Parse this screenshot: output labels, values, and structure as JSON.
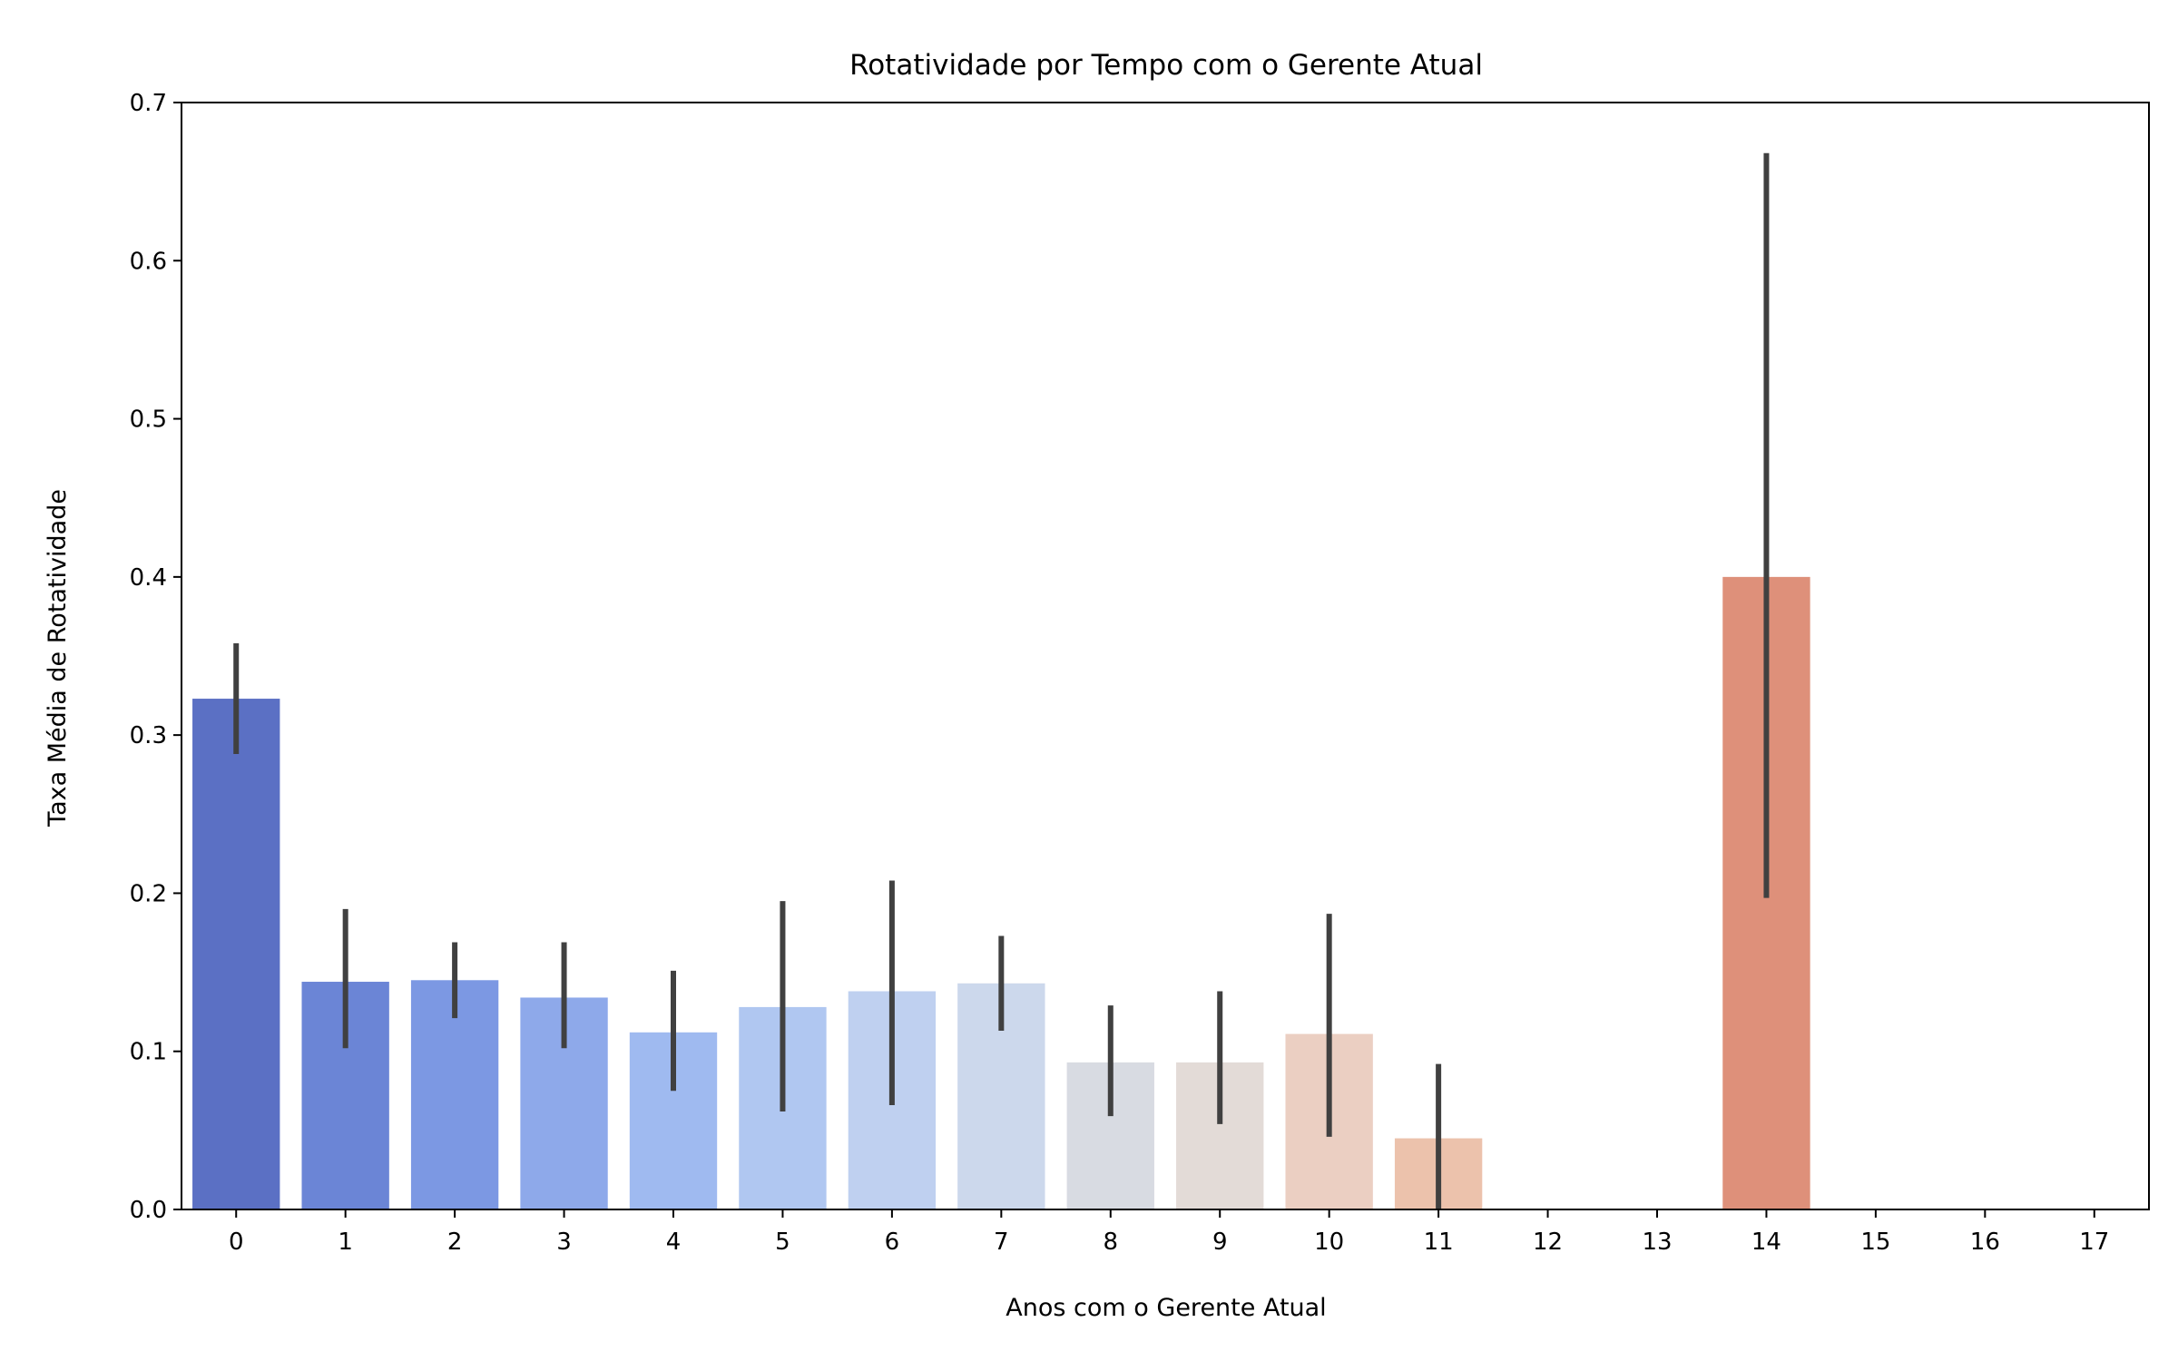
{
  "chart_data": {
    "type": "bar",
    "title": "Rotatividade por Tempo com o Gerente Atual",
    "xlabel": "Anos com o Gerente Atual",
    "ylabel": "Taxa Média de Rotatividade",
    "categories": [
      "0",
      "1",
      "2",
      "3",
      "4",
      "5",
      "6",
      "7",
      "8",
      "9",
      "10",
      "11",
      "12",
      "13",
      "14",
      "15",
      "16",
      "17"
    ],
    "values": [
      0.323,
      0.144,
      0.145,
      0.134,
      0.112,
      0.128,
      0.138,
      0.143,
      0.093,
      0.093,
      0.111,
      0.045,
      0.0,
      0.0,
      0.4,
      0.0,
      0.0,
      0.0
    ],
    "error_low": [
      0.288,
      0.102,
      0.121,
      0.102,
      0.075,
      0.062,
      0.066,
      0.113,
      0.059,
      0.054,
      0.046,
      0.0,
      null,
      null,
      0.197,
      null,
      null,
      null
    ],
    "error_high": [
      0.358,
      0.19,
      0.169,
      0.169,
      0.151,
      0.195,
      0.208,
      0.173,
      0.129,
      0.138,
      0.187,
      0.092,
      null,
      null,
      0.668,
      null,
      null,
      null
    ],
    "colors": [
      "#5b70c4",
      "#6b85d6",
      "#7c98e3",
      "#8ea9ea",
      "#9fbaf0",
      "#b0c7f1",
      "#bfd0f0",
      "#ccd8ec",
      "#d8dbe2",
      "#e3dbd7",
      "#ebcfc2",
      "#ecc2ac",
      "#e8b398",
      "#e5a385",
      "#de907a",
      "#d97d68",
      "#d16a58",
      "#c75448"
    ],
    "ylim": [
      0,
      0.7
    ],
    "yticks": [
      "0.0",
      "0.1",
      "0.2",
      "0.3",
      "0.4",
      "0.5",
      "0.6",
      "0.7"
    ],
    "grid": false,
    "legend": "none"
  }
}
